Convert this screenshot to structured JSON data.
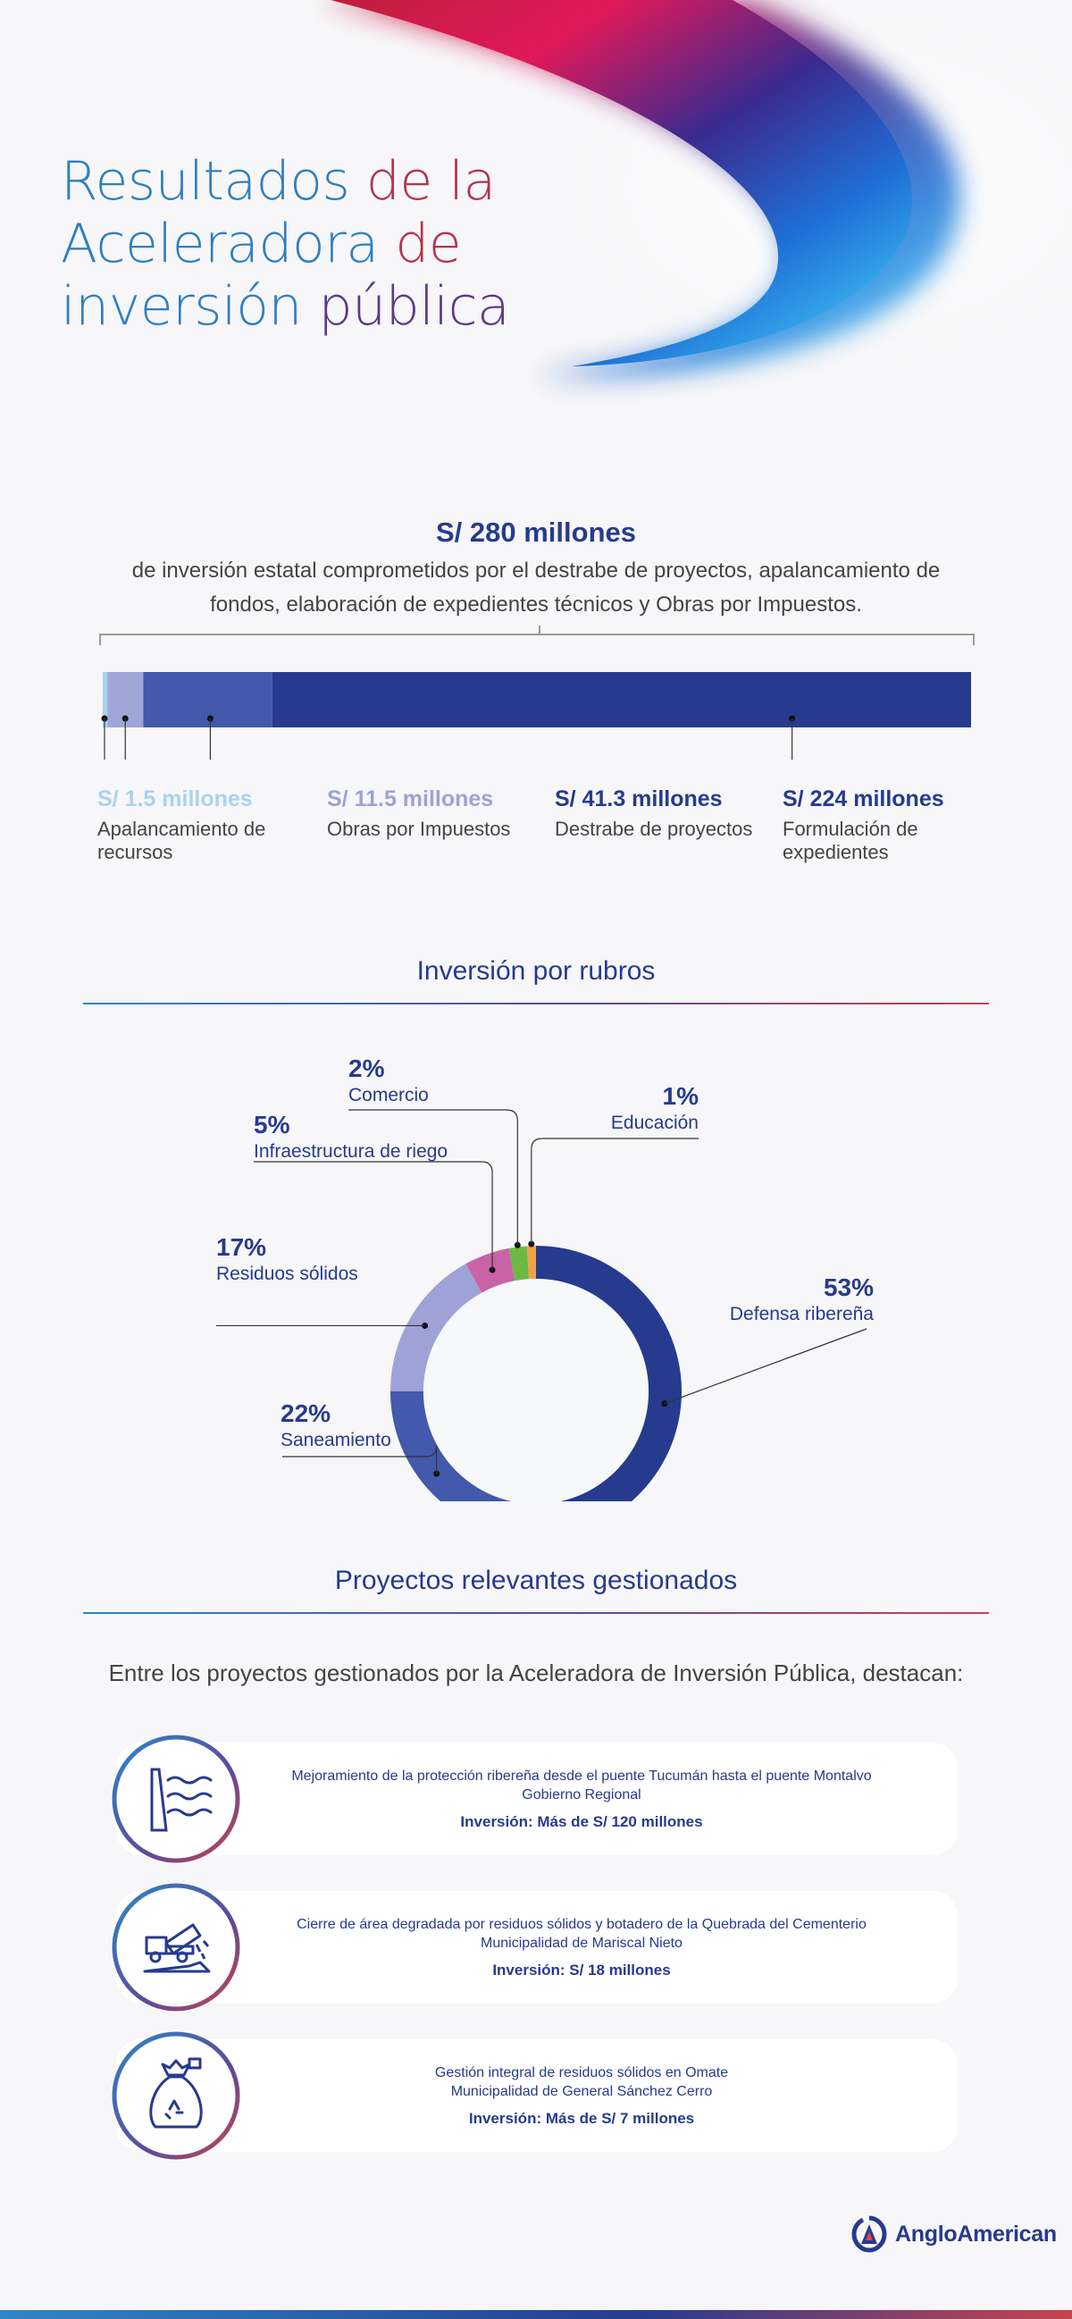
{
  "header": {
    "title_lines": [
      [
        {
          "text": "Resultados ",
          "tone": "c1"
        },
        {
          "text": "de la",
          "tone": "c3"
        }
      ],
      [
        {
          "text": "Aceleradora ",
          "tone": "c1"
        },
        {
          "text": "de",
          "tone": "c3"
        }
      ],
      [
        {
          "text": "inversión ",
          "tone": "c1"
        },
        {
          "text": "pública",
          "tone": "c2"
        }
      ]
    ]
  },
  "total": {
    "amount": "S/ 280 millones",
    "description": "de inversión estatal comprometidos por el destrabe de proyectos, apalancamiento de fondos, elaboración de expedientes técnicos y Obras por Impuestos."
  },
  "chart_data": [
    {
      "type": "bar",
      "orientation": "horizontal-stacked",
      "unit": "S/ millones",
      "total": 280,
      "categories": [
        "Apalancamiento de recursos",
        "Obras por Impuestos",
        "Destrabe de proyectos",
        "Formulación de expedientes"
      ],
      "values": [
        1.5,
        11.5,
        41.3,
        224
      ],
      "labels": [
        "S/ 1.5 millones",
        "S/ 11.5 millones",
        "S/ 41.3 millones",
        "S/ 224 millones"
      ],
      "colors": [
        "#a9d3ee",
        "#a0a6d8",
        "#4259ac",
        "#263b8e"
      ]
    },
    {
      "type": "pie",
      "title": "Inversión por rubros",
      "unit": "%",
      "slices": [
        {
          "name": "Defensa ribereña",
          "value": 53,
          "label": "53%",
          "color": "#263b8e"
        },
        {
          "name": "Saneamiento",
          "value": 22,
          "label": "22%",
          "color": "#4259ac"
        },
        {
          "name": "Residuos sólidos",
          "value": 17,
          "label": "17%",
          "color": "#9ea2d6"
        },
        {
          "name": "Infraestructura de riego",
          "value": 5,
          "label": "5%",
          "color": "#c864a6"
        },
        {
          "name": "Comercio",
          "value": 2,
          "label": "2%",
          "color": "#6db845"
        },
        {
          "name": "Educación",
          "value": 1,
          "label": "1%",
          "color": "#f0a24b"
        }
      ]
    }
  ],
  "projects": {
    "title": "Proyectos relevantes gestionados",
    "intro": "Entre los proyectos gestionados por la Aceleradora de Inversión Pública, destacan:",
    "items": [
      {
        "text": "Mejoramiento de la protección ribereña desde el puente Tucumán hasta el puente Montalvo",
        "org": "Gobierno Regional",
        "investment": "Inversión: Más de S/ 120 millones",
        "icon": "river-protection-icon"
      },
      {
        "text": "Cierre de área degradada por residuos sólidos y botadero de la Quebrada del Cementerio",
        "org": "Municipalidad de Mariscal Nieto",
        "investment": "Inversión: S/ 18 millones",
        "icon": "dump-truck-icon"
      },
      {
        "text": "Gestión integral de residuos sólidos en Omate",
        "org": "Municipalidad de General Sánchez Cerro",
        "investment": "Inversión: Más de S/ 7 millones",
        "icon": "recycling-bag-icon"
      }
    ]
  },
  "logo": {
    "text": "AngloAmerican"
  }
}
